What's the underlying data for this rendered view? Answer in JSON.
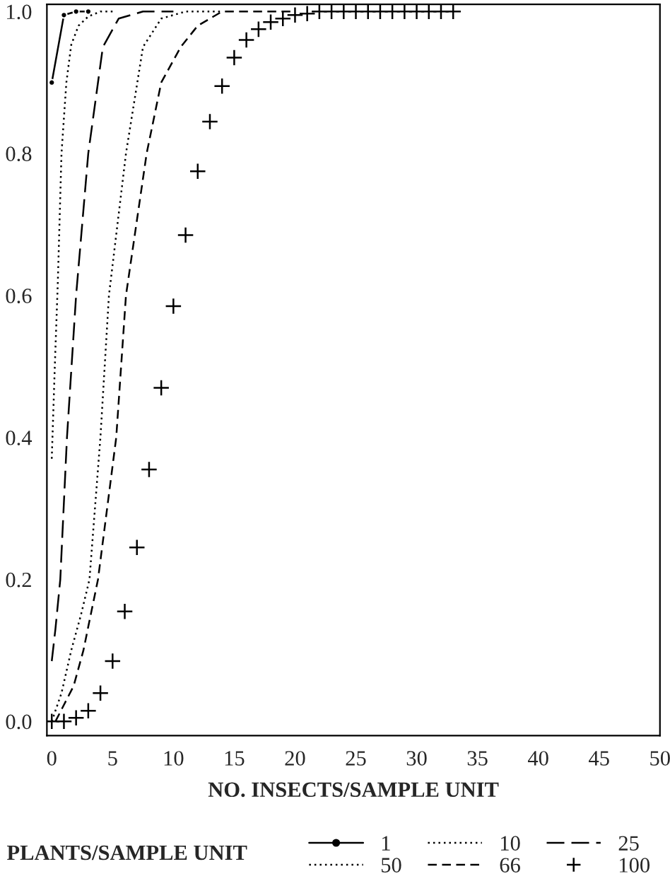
{
  "chart_data": {
    "type": "line",
    "xlabel": "NO. INSECTS/SAMPLE UNIT",
    "legend_title": "PLANTS/SAMPLE UNIT",
    "legend": "bottom",
    "grid": false,
    "xlim": [
      -0.4,
      50
    ],
    "xticks": [
      0,
      5,
      10,
      15,
      20,
      25,
      30,
      35,
      40,
      45,
      50
    ],
    "ylim": [
      -0.02,
      1.01
    ],
    "yticks": [
      {
        "value": 0,
        "label": "0.0"
      },
      {
        "value": 0.2,
        "label": "0.2"
      },
      {
        "value": 0.4,
        "label": "0.4"
      },
      {
        "value": 0.6,
        "label": "0.6"
      },
      {
        "value": 0.8,
        "label": "0.8"
      },
      {
        "value": 1.0,
        "label": "1.0"
      }
    ],
    "series": [
      {
        "name": "1",
        "color": "#000000",
        "marker": "circle",
        "line_style": "solid",
        "x": [
          0,
          1,
          2,
          3
        ],
        "values": [
          0.9,
          0.995,
          1.0,
          1.0
        ]
      },
      {
        "name": "10",
        "color": "#000000",
        "marker": "none",
        "line_style": "dotted",
        "x": [
          0,
          0.25,
          0.5,
          0.8,
          1.2,
          1.6,
          2.2,
          3,
          4,
          5
        ],
        "values": [
          0.37,
          0.5,
          0.62,
          0.8,
          0.9,
          0.953,
          0.98,
          0.993,
          1.0,
          1.0
        ]
      },
      {
        "name": "25",
        "color": "#000000",
        "marker": "none",
        "line_style": "dashed",
        "x": [
          0,
          0.3,
          0.7,
          1.25,
          2.0,
          3.0,
          4.2,
          5.5,
          7.5,
          10
        ],
        "values": [
          0.085,
          0.13,
          0.2,
          0.4,
          0.6,
          0.8,
          0.95,
          0.99,
          1.0,
          1.0
        ]
      },
      {
        "name": "50",
        "color": "#000000",
        "marker": "none",
        "line_style": "dotted",
        "x": [
          0,
          0.8,
          1.6,
          2.4,
          3.1,
          4.0,
          4.7,
          6.1,
          7.5,
          9,
          11,
          14
        ],
        "values": [
          0.0,
          0.04,
          0.1,
          0.15,
          0.2,
          0.4,
          0.6,
          0.8,
          0.95,
          0.99,
          1.0,
          1.0
        ]
      },
      {
        "name": "66",
        "color": "#000000",
        "marker": "none",
        "line_style": "dashed",
        "x": [
          0.3,
          0.9,
          1.8,
          2.6,
          3.8,
          5.3,
          6.1,
          7.8,
          9,
          10.6,
          12,
          14,
          20
        ],
        "values": [
          0.0,
          0.02,
          0.05,
          0.1,
          0.2,
          0.4,
          0.6,
          0.8,
          0.9,
          0.95,
          0.98,
          1.0,
          1.0
        ]
      },
      {
        "name": "100",
        "type": "scatter",
        "color": "#000000",
        "marker": "cross",
        "x": [
          0,
          1,
          2,
          3,
          4,
          5,
          6,
          7,
          8,
          9,
          10,
          11,
          12,
          13,
          14,
          15,
          16,
          17,
          18,
          19,
          20,
          21,
          22,
          23,
          24,
          25,
          26,
          27,
          28,
          29,
          30,
          31,
          32,
          33
        ],
        "values": [
          0.0,
          0.0,
          0.005,
          0.015,
          0.04,
          0.085,
          0.155,
          0.245,
          0.355,
          0.47,
          0.585,
          0.685,
          0.775,
          0.845,
          0.895,
          0.935,
          0.96,
          0.975,
          0.985,
          0.99,
          0.995,
          0.997,
          1.0,
          1.0,
          1.0,
          1.0,
          1.0,
          1.0,
          1.0,
          1.0,
          1.0,
          1.0,
          1.0,
          1.0
        ]
      }
    ]
  }
}
